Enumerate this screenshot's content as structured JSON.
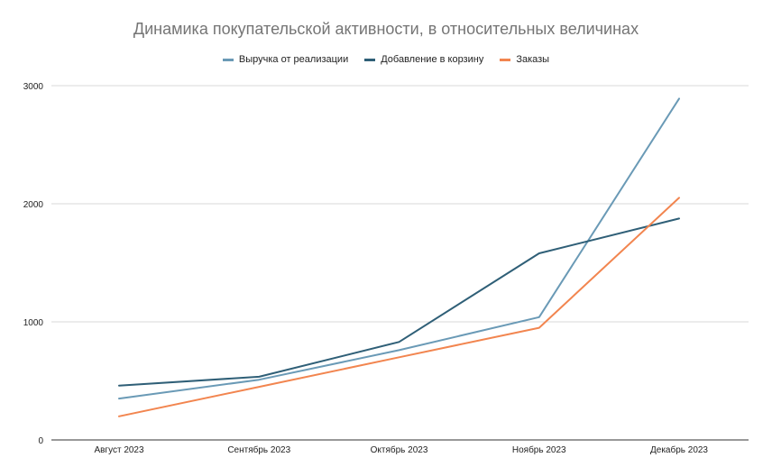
{
  "chart_data": {
    "type": "line",
    "title": "Динамика покупательской активности, в относительных величинах",
    "categories": [
      "Август 2023",
      "Сентябрь 2023",
      "Октябрь 2023",
      "Ноябрь 2023",
      "Декабрь 2023"
    ],
    "series": [
      {
        "name": "Выручка от реализации",
        "color": "#6a9ab6",
        "values": [
          350,
          510,
          760,
          1040,
          2890
        ]
      },
      {
        "name": "Добавление в корзину",
        "color": "#2f5f77",
        "values": [
          460,
          535,
          830,
          1580,
          1875
        ]
      },
      {
        "name": "Заказы",
        "color": "#f2854f",
        "values": [
          200,
          450,
          700,
          950,
          2050
        ]
      }
    ],
    "ylim": [
      0,
      3000
    ],
    "yticks": [
      "0",
      "1000",
      "2000",
      "3000"
    ],
    "grid": true,
    "legend_position": "top-center"
  }
}
